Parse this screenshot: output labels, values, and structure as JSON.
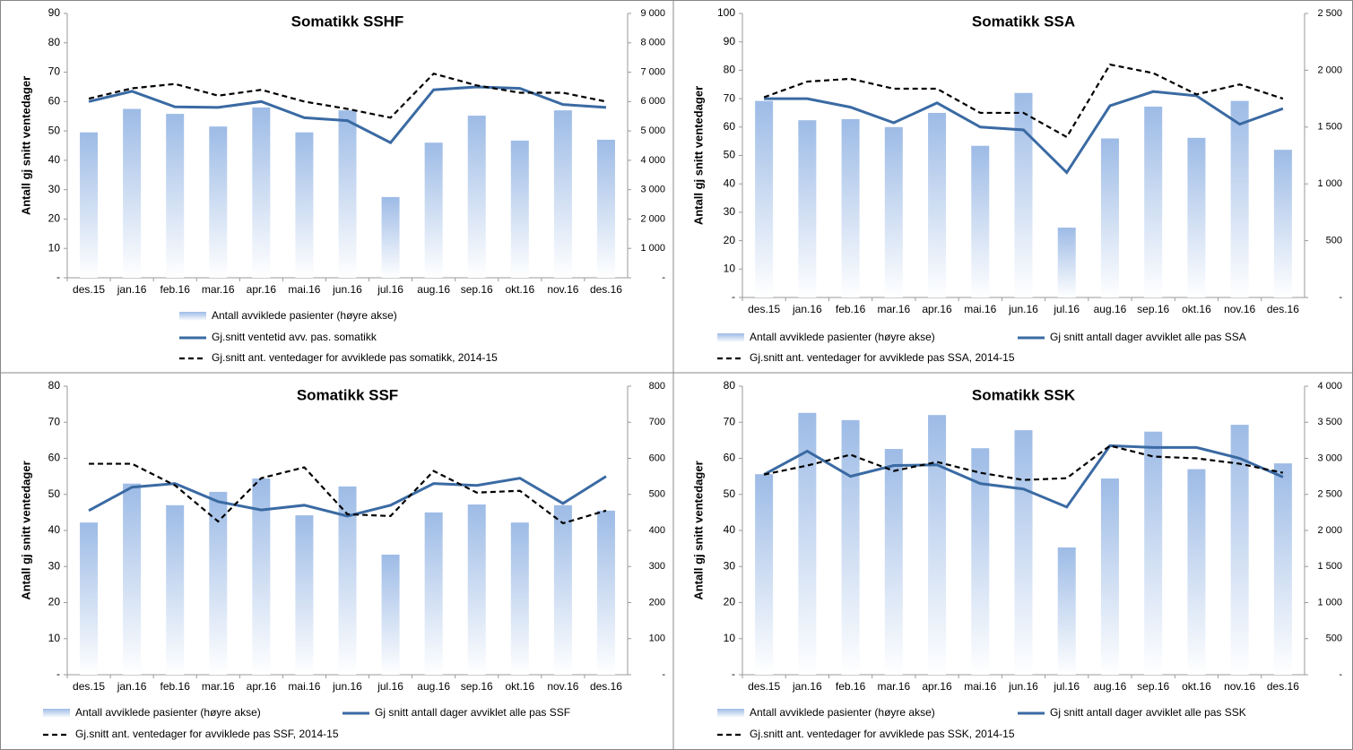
{
  "chart_data": [
    {
      "type": "bar-line",
      "title": "Somatikk SSHF",
      "y_label": "Antall gj snitt ventedager",
      "categories": [
        "des.15",
        "jan.16",
        "feb.16",
        "mar.16",
        "apr.16",
        "mai.16",
        "jun.16",
        "jul.16",
        "aug.16",
        "sep.16",
        "okt.16",
        "nov.16",
        "des.16"
      ],
      "ylim": [
        0,
        90
      ],
      "yticks": [
        {
          "value": 0,
          "label": "-"
        },
        10,
        20,
        30,
        40,
        50,
        60,
        70,
        80,
        90
      ],
      "y2lim": [
        0,
        9000
      ],
      "y2ticks": [
        {
          "value": 0,
          "label": "-"
        },
        {
          "value": 1000,
          "label": "1 000"
        },
        {
          "value": 2000,
          "label": "2 000"
        },
        {
          "value": 3000,
          "label": "3 000"
        },
        {
          "value": 4000,
          "label": "4 000"
        },
        {
          "value": 5000,
          "label": "5 000"
        },
        {
          "value": 6000,
          "label": "6 000"
        },
        {
          "value": 7000,
          "label": "7 000"
        },
        {
          "value": 8000,
          "label": "8 000"
        },
        {
          "value": 9000,
          "label": "9 000"
        }
      ],
      "series": [
        {
          "name": "Antall avviklede pasienter (høyre akse)",
          "type": "bar",
          "axis": "y2",
          "color": "#9dbbe6",
          "values": [
            4950,
            5750,
            5580,
            5150,
            5800,
            4950,
            5700,
            2750,
            4600,
            5520,
            4670,
            5700,
            4700
          ]
        },
        {
          "name": "Gj.snitt ventetid avv. pas. somatikk",
          "type": "line",
          "color": "#3a6aa3",
          "values": [
            60,
            63.5,
            58.2,
            58,
            60,
            54.5,
            53.5,
            46,
            64,
            65,
            64.5,
            59,
            58
          ]
        },
        {
          "name": "Gj.snitt ant. ventedager for avviklede pas somatikk, 2014-15",
          "type": "dashed",
          "color": "#000000",
          "values": [
            61,
            64.5,
            66,
            62,
            64,
            60,
            57.5,
            54.5,
            69.5,
            65.5,
            63,
            63,
            60
          ]
        }
      ]
    },
    {
      "type": "bar-line",
      "title": "Somatikk SSA",
      "y_label": "Antall gj snitt ventedager",
      "categories": [
        "des.15",
        "jan.16",
        "feb.16",
        "mar.16",
        "apr.16",
        "mai.16",
        "jun.16",
        "jul.16",
        "aug.16",
        "sep.16",
        "okt.16",
        "nov.16",
        "des.16"
      ],
      "ylim": [
        0,
        100
      ],
      "yticks": [
        {
          "value": 0,
          "label": "-"
        },
        10,
        20,
        30,
        40,
        50,
        60,
        70,
        80,
        90,
        100
      ],
      "y2lim": [
        0,
        2500
      ],
      "y2ticks": [
        {
          "value": 0,
          "label": "-"
        },
        500,
        {
          "value": 1000,
          "label": "1 000"
        },
        {
          "value": 1500,
          "label": "1 500"
        },
        {
          "value": 2000,
          "label": "2 000"
        },
        {
          "value": 2500,
          "label": "2 500"
        }
      ],
      "series": [
        {
          "name": "Antall avviklede pasienter (høyre akse)",
          "type": "bar",
          "axis": "y2",
          "color": "#9dbbe6",
          "values": [
            1730,
            1560,
            1570,
            1500,
            1625,
            1335,
            1800,
            615,
            1400,
            1680,
            1405,
            1730,
            1300
          ]
        },
        {
          "name": "Gj snitt antall dager avviklet alle pas SSA",
          "type": "line",
          "color": "#3a6aa3",
          "values": [
            70,
            70,
            67,
            61.5,
            68.5,
            60,
            59,
            44,
            67.5,
            72.5,
            71,
            61,
            66.5
          ]
        },
        {
          "name": "Gj.snitt ant. ventedager for avviklede pas SSA, 2014-15",
          "type": "dashed",
          "color": "#000000",
          "values": [
            70.5,
            76,
            77,
            73.5,
            73.5,
            65,
            65,
            56.5,
            82,
            79,
            71.5,
            75,
            70
          ]
        }
      ]
    },
    {
      "type": "bar-line",
      "title": "Somatikk SSF",
      "y_label": "Antall gj snitt ventedager",
      "categories": [
        "des.15",
        "jan.16",
        "feb.16",
        "mar.16",
        "apr.16",
        "mai.16",
        "jun.16",
        "jul.16",
        "aug.16",
        "sep.16",
        "okt.16",
        "nov.16",
        "des.16"
      ],
      "ylim": [
        0,
        80
      ],
      "yticks": [
        {
          "value": 0,
          "label": "-"
        },
        10,
        20,
        30,
        40,
        50,
        60,
        70,
        80
      ],
      "y2lim": [
        0,
        800
      ],
      "y2ticks": [
        {
          "value": 0,
          "label": "-"
        },
        100,
        200,
        300,
        400,
        500,
        600,
        700,
        800
      ],
      "series": [
        {
          "name": "Antall avviklede pasienter (høyre akse)",
          "type": "bar",
          "axis": "y2",
          "color": "#9dbbe6",
          "values": [
            422,
            530,
            470,
            507,
            544,
            442,
            522,
            333,
            450,
            472,
            422,
            470,
            455
          ]
        },
        {
          "name": "Gj snitt antall dager avviklet alle pas SSF",
          "type": "line",
          "color": "#3a6aa3",
          "values": [
            45.5,
            52,
            53,
            48,
            45.7,
            47,
            44,
            47,
            53,
            52.5,
            54.5,
            47.5,
            55
          ]
        },
        {
          "name": "Gj.snitt ant. ventedager for avviklede pas SSF, 2014-15",
          "type": "dashed",
          "color": "#000000",
          "values": [
            58.5,
            58.5,
            52.5,
            42.5,
            54.5,
            57.5,
            44.5,
            44,
            56.5,
            50.5,
            51,
            42,
            45.5
          ]
        }
      ]
    },
    {
      "type": "bar-line",
      "title": "Somatikk SSK",
      "y_label": "Antall gj snitt ventedager",
      "categories": [
        "des.15",
        "jan.16",
        "feb.16",
        "mar.16",
        "apr.16",
        "mai.16",
        "jun.16",
        "jul.16",
        "aug.16",
        "sep.16",
        "okt.16",
        "nov.16",
        "des.16"
      ],
      "ylim": [
        0,
        80
      ],
      "yticks": [
        {
          "value": 0,
          "label": "-"
        },
        10,
        20,
        30,
        40,
        50,
        60,
        70,
        80
      ],
      "y2lim": [
        0,
        4000
      ],
      "y2ticks": [
        {
          "value": 0,
          "label": "-"
        },
        500,
        {
          "value": 1000,
          "label": "1 000"
        },
        {
          "value": 1500,
          "label": "1 500"
        },
        {
          "value": 2000,
          "label": "2 000"
        },
        {
          "value": 2500,
          "label": "2 500"
        },
        {
          "value": 3000,
          "label": "3 000"
        },
        {
          "value": 3500,
          "label": "3 500"
        },
        {
          "value": 4000,
          "label": "4 000"
        }
      ],
      "series": [
        {
          "name": "Antall avviklede pasienter (høyre akse)",
          "type": "bar",
          "axis": "y2",
          "color": "#9dbbe6",
          "values": [
            2780,
            3630,
            3530,
            3130,
            3600,
            3140,
            3390,
            1765,
            2720,
            3370,
            2850,
            3465,
            2930
          ]
        },
        {
          "name": "Gj snitt antall dager avviklet alle pas SSK",
          "type": "line",
          "color": "#3a6aa3",
          "values": [
            55.5,
            62,
            55,
            58,
            58.2,
            53,
            51.5,
            46.5,
            63.5,
            63,
            63,
            60,
            54.8
          ]
        },
        {
          "name": "Gj.snitt ant. ventedager for avviklede pas SSK, 2014-15",
          "type": "dashed",
          "color": "#000000",
          "values": [
            55.5,
            58,
            61,
            56.5,
            59,
            56,
            54,
            54.5,
            63.5,
            60.5,
            60,
            58.5,
            56
          ]
        }
      ]
    }
  ]
}
